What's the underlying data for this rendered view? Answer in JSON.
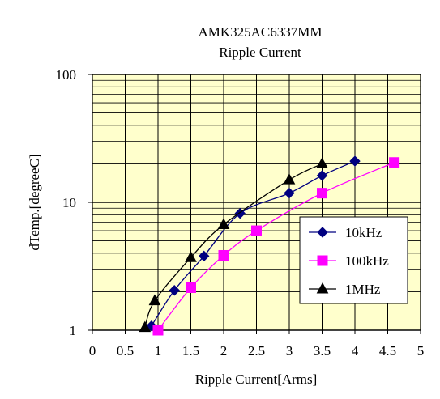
{
  "chart_data": {
    "type": "line",
    "title": "AMK325AC6337MM",
    "subtitle": "Ripple Current",
    "xlabel": "Ripple Current[Arms]",
    "ylabel": "dTemp.[degreeC]",
    "x_ticks": [
      "0",
      "0.5",
      "1",
      "1.5",
      "2",
      "2.5",
      "3",
      "3.5",
      "4",
      "4.5",
      "5"
    ],
    "y_ticks": [
      "1",
      "10",
      "100"
    ],
    "xlim": [
      0,
      5
    ],
    "ylim": [
      1,
      100
    ],
    "y_scale": "log",
    "grid": true,
    "legend_position": "right-middle",
    "plot_background": "#ffffcc",
    "series": [
      {
        "name": "10kHz",
        "color": "#000080",
        "marker": "diamond",
        "x": [
          0.9,
          1.25,
          1.7,
          2.25,
          3.0,
          3.5,
          4.0
        ],
        "y": [
          1.08,
          2.05,
          3.8,
          8.2,
          11.8,
          16.2,
          21.0
        ]
      },
      {
        "name": "100kHz",
        "color": "#ff00ff",
        "marker": "square",
        "x": [
          1.0,
          1.5,
          2.0,
          2.5,
          3.5,
          4.6
        ],
        "y": [
          1.0,
          2.15,
          3.85,
          6.0,
          11.8,
          20.5
        ]
      },
      {
        "name": "1MHz",
        "color": "#000000",
        "marker": "triangle",
        "x": [
          0.8,
          0.95,
          1.5,
          2.0,
          3.0,
          3.5
        ],
        "y": [
          1.05,
          1.7,
          3.7,
          6.7,
          15.0,
          20.0
        ]
      }
    ]
  }
}
